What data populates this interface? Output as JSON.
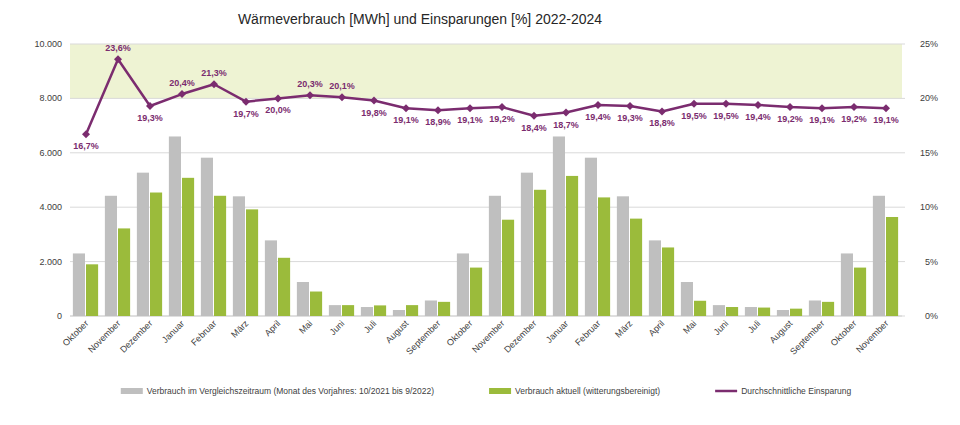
{
  "chart_data": {
    "type": "bar",
    "title": "Wärmeverbrauch [MWh] und Einsparungen [%] 2022-2024",
    "categories": [
      "Oktober",
      "November",
      "Dezember",
      "Januar",
      "Februar",
      "März",
      "April",
      "Mai",
      "Juni",
      "Juli",
      "August",
      "September",
      "Oktober",
      "November",
      "Dezember",
      "Januar",
      "Februar",
      "März",
      "April",
      "Mai",
      "Juni",
      "Juli",
      "August",
      "September",
      "Oktober",
      "November"
    ],
    "series": [
      {
        "name": "Verbrauch im Vergleichszeitraum (Monat des Vorjahres: 10/2021 bis 9/2022)",
        "color": "#bfbfbf",
        "values": [
          2300,
          4420,
          5270,
          6600,
          5820,
          4400,
          2780,
          1250,
          400,
          330,
          220,
          570,
          2300,
          4420,
          5270,
          6600,
          5820,
          4400,
          2780,
          1250,
          400,
          330,
          220,
          570,
          2300,
          4420
        ]
      },
      {
        "name": "Verbrauch aktuell (witterungsbereinigt)",
        "color": "#9bbb3b",
        "values": [
          1900,
          3220,
          4540,
          5080,
          4420,
          3920,
          2140,
          900,
          400,
          390,
          400,
          520,
          1780,
          3540,
          4640,
          5150,
          4360,
          3580,
          2520,
          560,
          330,
          310,
          270,
          520,
          1780,
          3640
        ]
      },
      {
        "name": "Durchschnittliche Einsparung",
        "type": "line",
        "axis": "y2",
        "color": "#7b2c6f",
        "marker": "diamond",
        "data_labels": true,
        "values": [
          16.7,
          23.6,
          19.3,
          20.4,
          21.3,
          19.7,
          20.0,
          20.3,
          20.1,
          19.8,
          19.1,
          18.9,
          19.1,
          19.2,
          18.4,
          18.7,
          19.4,
          19.3,
          18.8,
          19.5,
          19.5,
          19.4,
          19.2,
          19.1,
          19.2,
          19.1
        ],
        "value_labels": [
          "16,7%",
          "23,6%",
          "19,3%",
          "20,4%",
          "21,3%",
          "19,7%",
          "20,0%",
          "20,3%",
          "20,1%",
          "19,8%",
          "19,1%",
          "18,9%",
          "19,1%",
          "19,2%",
          "18,4%",
          "18,7%",
          "19,4%",
          "19,3%",
          "18,8%",
          "19,5%",
          "19,5%",
          "19,4%",
          "19,2%",
          "19,1%",
          "19,2%",
          "19,1%"
        ]
      }
    ],
    "ylim": [
      0,
      10000
    ],
    "yticks": [
      0,
      {
        "value": 2000,
        "label": "2.000"
      },
      {
        "value": 4000,
        "label": "4.000"
      },
      {
        "value": 6000,
        "label": "6.000"
      },
      {
        "value": 8000,
        "label": "8.000"
      },
      {
        "value": 10000,
        "label": "10.000"
      }
    ],
    "y2lim": [
      0,
      25
    ],
    "y2ticks": [
      {
        "value": 0,
        "label": "0%"
      },
      {
        "value": 5,
        "label": "5%"
      },
      {
        "value": 10,
        "label": "10%"
      },
      {
        "value": 15,
        "label": "15%"
      },
      {
        "value": 20,
        "label": "20%"
      },
      {
        "value": 25,
        "label": "25%"
      }
    ],
    "grid": true,
    "legend": "bottom",
    "shaded_range": [
      8000,
      10000
    ]
  }
}
